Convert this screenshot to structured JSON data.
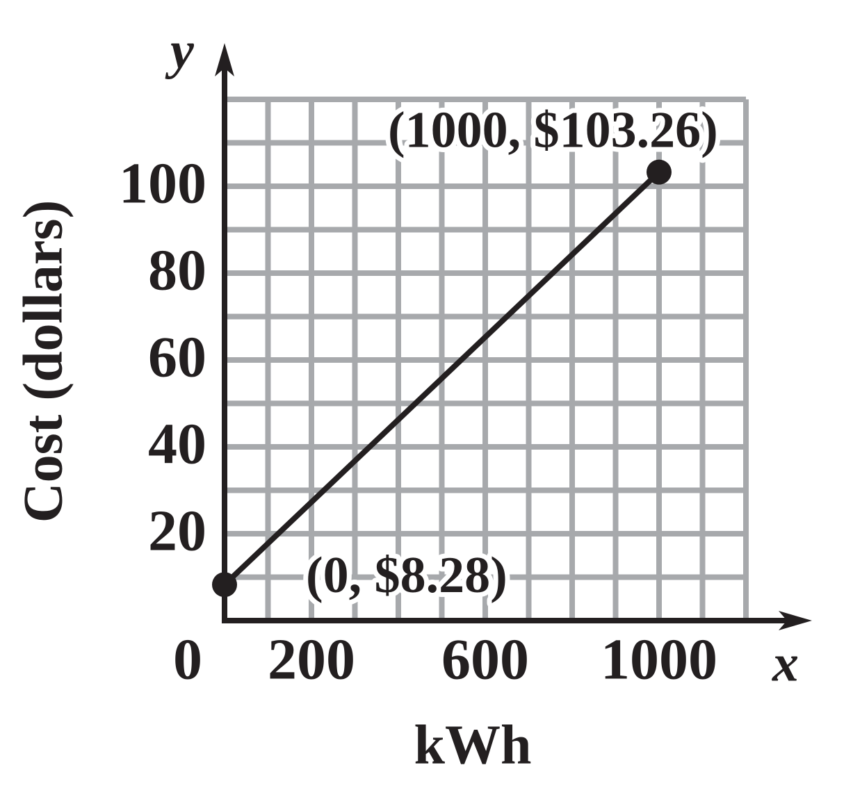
{
  "chart_data": {
    "type": "line",
    "x_label": "kWh",
    "y_label": "Cost (dollars)",
    "x_axis_letter": "x",
    "y_axis_letter": "y",
    "x": [
      0,
      1000
    ],
    "series": [
      {
        "color": "#231f20",
        "values": [
          8.28,
          103.26
        ],
        "value_labels": [
          "(0, $8.28)",
          "(1000, $103.26)"
        ]
      }
    ],
    "xlim": [
      0,
      1200
    ],
    "ylim": [
      0,
      120
    ],
    "xticks": [
      0,
      200,
      600,
      1000
    ],
    "yticks": [
      20,
      40,
      60,
      80,
      100
    ],
    "grid": true,
    "grid_color": "#a7a9ac"
  }
}
